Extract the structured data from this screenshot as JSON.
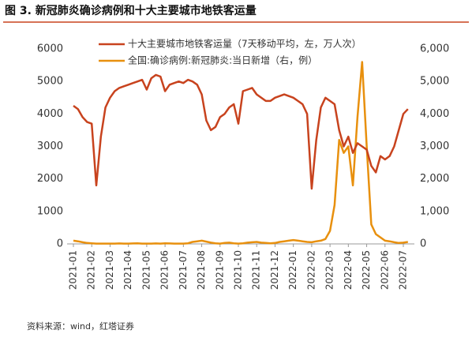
{
  "chart_data": {
    "type": "line",
    "title": "图 3. 新冠肺炎确诊病例和十大主要城市地铁客运量",
    "source": "资料来源：wind，红塔证券",
    "categories": [
      "2021-01",
      null,
      null,
      null,
      "2021-02",
      null,
      null,
      null,
      "2021-03",
      null,
      null,
      null,
      "2021-04",
      null,
      null,
      null,
      "2021-05",
      null,
      null,
      null,
      "2021-06",
      null,
      null,
      null,
      "2021-07",
      null,
      null,
      null,
      "2021-08",
      null,
      null,
      null,
      "2021-09",
      null,
      null,
      null,
      "2021-10",
      null,
      null,
      null,
      "2021-11",
      null,
      null,
      null,
      "2021-12",
      null,
      null,
      null,
      "2022-01",
      null,
      null,
      null,
      "2022-02",
      null,
      null,
      null,
      "2022-03",
      null,
      null,
      null,
      "2022-04",
      null,
      null,
      null,
      "2022-05",
      null,
      null,
      null,
      "2022-06",
      null,
      null,
      null,
      "2022-07",
      null
    ],
    "series": [
      {
        "name": "十大主要城市地铁客运量（7天移动平均，左，万人次）",
        "color": "#c8431e",
        "axis": "y",
        "values": [
          4250,
          4150,
          3900,
          3750,
          3700,
          1800,
          3300,
          4200,
          4500,
          4700,
          4800,
          4850,
          4900,
          4950,
          5000,
          5050,
          4750,
          5100,
          5200,
          5150,
          4700,
          4900,
          4950,
          5000,
          4950,
          5050,
          5000,
          4900,
          4600,
          3800,
          3500,
          3600,
          3900,
          4000,
          4200,
          4300,
          3700,
          4700,
          4750,
          4800,
          4600,
          4500,
          4400,
          4400,
          4500,
          4550,
          4600,
          4550,
          4500,
          4400,
          4300,
          4000,
          1700,
          3200,
          4200,
          4500,
          4400,
          4300,
          3500,
          3000,
          3300,
          2800,
          3100,
          3000,
          2900,
          2400,
          2200,
          2700,
          2600,
          2700,
          3000,
          3500,
          4000,
          4150
        ]
      },
      {
        "name": "全国:确诊病例:新冠肺炎:当日新增（右，例）",
        "color": "#e8900e",
        "axis": "y2",
        "values": [
          100,
          80,
          50,
          30,
          20,
          10,
          10,
          10,
          10,
          10,
          15,
          10,
          10,
          15,
          20,
          10,
          10,
          10,
          15,
          10,
          20,
          15,
          10,
          10,
          10,
          20,
          60,
          80,
          100,
          70,
          40,
          20,
          10,
          30,
          40,
          20,
          10,
          20,
          40,
          50,
          60,
          40,
          30,
          20,
          30,
          60,
          80,
          100,
          120,
          100,
          80,
          60,
          50,
          80,
          100,
          150,
          400,
          1200,
          3200,
          2800,
          3000,
          1800,
          3900,
          5600,
          3000,
          600,
          300,
          200,
          100,
          80,
          50,
          30,
          40,
          60
        ]
      }
    ],
    "ylim": [
      0,
      6000
    ],
    "yticks": [
      0,
      1000,
      2000,
      3000,
      4000,
      5000,
      6000
    ],
    "y2lim": [
      0,
      6000
    ],
    "y2ticks": [
      0,
      {
        "value": 1000,
        "label": "1,000"
      },
      {
        "value": 2000,
        "label": "2,000"
      },
      {
        "value": 3000,
        "label": "3,000"
      },
      {
        "value": 4000,
        "label": "4,000"
      },
      {
        "value": 5000,
        "label": "5,000"
      },
      {
        "value": 6000,
        "label": "6,000"
      }
    ]
  }
}
